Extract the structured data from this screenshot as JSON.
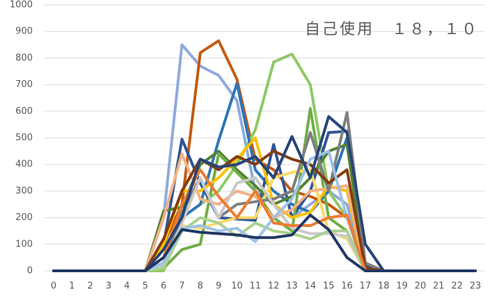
{
  "chart_data": {
    "type": "line",
    "title": "自己使用　１８，１０",
    "x": [
      0,
      1,
      2,
      3,
      4,
      5,
      6,
      7,
      8,
      9,
      10,
      11,
      12,
      13,
      14,
      15,
      16,
      17,
      18,
      19,
      20,
      21,
      22,
      23
    ],
    "xlim": [
      0,
      23
    ],
    "xticks": [
      0,
      1,
      2,
      3,
      4,
      5,
      6,
      7,
      8,
      9,
      10,
      11,
      12,
      13,
      14,
      15,
      16,
      17,
      18,
      19,
      20,
      21,
      22,
      23
    ],
    "ylim": [
      0,
      1000
    ],
    "yticks": [
      0,
      100,
      200,
      300,
      400,
      500,
      600,
      700,
      800,
      900,
      1000
    ],
    "grid": true,
    "series": [
      {
        "color": "#8faadc",
        "values": [
          0,
          0,
          0,
          0,
          0,
          0,
          200,
          850,
          770,
          735,
          640,
          300,
          250,
          200,
          250,
          300,
          250,
          0,
          0,
          0,
          0,
          0,
          0,
          0
        ]
      },
      {
        "color": "#c55a11",
        "values": [
          0,
          0,
          0,
          0,
          0,
          0,
          100,
          250,
          820,
          865,
          720,
          420,
          380,
          300,
          280,
          250,
          200,
          0,
          0,
          0,
          0,
          0,
          0,
          0
        ]
      },
      {
        "color": "#8fc866",
        "values": [
          0,
          0,
          0,
          0,
          0,
          0,
          0,
          200,
          250,
          300,
          400,
          530,
          785,
          815,
          700,
          300,
          200,
          0,
          0,
          0,
          0,
          0,
          0,
          0
        ]
      },
      {
        "color": "#2e75b6",
        "values": [
          0,
          0,
          0,
          0,
          0,
          0,
          50,
          200,
          250,
          490,
          705,
          380,
          300,
          250,
          220,
          300,
          500,
          20,
          0,
          0,
          0,
          0,
          0,
          0
        ]
      },
      {
        "color": "#2f5597",
        "values": [
          0,
          0,
          0,
          0,
          0,
          0,
          100,
          495,
          330,
          200,
          195,
          190,
          475,
          200,
          300,
          520,
          525,
          20,
          0,
          0,
          0,
          0,
          0,
          0
        ]
      },
      {
        "color": "#548235",
        "values": [
          0,
          0,
          0,
          0,
          0,
          0,
          225,
          240,
          400,
          450,
          380,
          320,
          250,
          280,
          350,
          450,
          475,
          10,
          0,
          0,
          0,
          0,
          0,
          0
        ]
      },
      {
        "color": "#70ad47",
        "values": [
          0,
          0,
          0,
          0,
          0,
          0,
          10,
          80,
          100,
          440,
          370,
          300,
          200,
          150,
          610,
          200,
          150,
          0,
          0,
          0,
          0,
          0,
          0,
          0
        ]
      },
      {
        "color": "#ffc000",
        "values": [
          0,
          0,
          0,
          0,
          0,
          0,
          100,
          300,
          300,
          350,
          420,
          500,
          250,
          200,
          220,
          320,
          300,
          0,
          0,
          0,
          0,
          0,
          0,
          0
        ]
      },
      {
        "color": "#ffd966",
        "values": [
          0,
          0,
          0,
          0,
          0,
          0,
          50,
          170,
          160,
          180,
          200,
          200,
          350,
          370,
          380,
          150,
          120,
          0,
          0,
          0,
          0,
          0,
          0,
          0
        ]
      },
      {
        "color": "#f4b183",
        "values": [
          0,
          0,
          0,
          0,
          0,
          0,
          200,
          440,
          270,
          250,
          300,
          280,
          200,
          230,
          300,
          310,
          320,
          0,
          0,
          0,
          0,
          0,
          0,
          0
        ]
      },
      {
        "color": "#7f7f7f",
        "values": [
          0,
          0,
          0,
          0,
          0,
          0,
          30,
          220,
          350,
          200,
          250,
          260,
          270,
          300,
          520,
          300,
          595,
          30,
          0,
          0,
          0,
          0,
          0,
          0
        ]
      },
      {
        "color": "#c9c9c9",
        "values": [
          0,
          0,
          0,
          0,
          0,
          0,
          20,
          180,
          350,
          200,
          330,
          350,
          250,
          160,
          140,
          140,
          130,
          0,
          0,
          0,
          0,
          0,
          0,
          0
        ]
      },
      {
        "color": "#843c0c",
        "values": [
          0,
          0,
          0,
          0,
          0,
          0,
          120,
          300,
          420,
          380,
          430,
          400,
          450,
          420,
          400,
          330,
          380,
          10,
          0,
          0,
          0,
          0,
          0,
          0
        ]
      },
      {
        "color": "#a9d18e",
        "values": [
          0,
          0,
          0,
          0,
          0,
          0,
          10,
          150,
          200,
          180,
          130,
          180,
          150,
          140,
          120,
          150,
          150,
          0,
          0,
          0,
          0,
          0,
          0,
          0
        ]
      },
      {
        "color": "#9dc3e6",
        "values": [
          0,
          0,
          0,
          0,
          0,
          0,
          30,
          160,
          170,
          150,
          160,
          110,
          200,
          270,
          420,
          450,
          200,
          0,
          0,
          0,
          0,
          0,
          0,
          0
        ]
      },
      {
        "color": "#ed7d31",
        "values": [
          0,
          0,
          0,
          0,
          0,
          0,
          50,
          250,
          380,
          280,
          200,
          300,
          180,
          170,
          170,
          200,
          210,
          0,
          0,
          0,
          0,
          0,
          0,
          0
        ]
      },
      {
        "color": "#264478",
        "values": [
          0,
          0,
          0,
          0,
          0,
          0,
          80,
          200,
          420,
          390,
          400,
          430,
          350,
          505,
          350,
          580,
          520,
          100,
          0,
          0,
          0,
          0,
          0,
          0
        ]
      },
      {
        "color": "#203864",
        "values": [
          0,
          0,
          0,
          0,
          0,
          0,
          50,
          155,
          145,
          140,
          135,
          125,
          125,
          135,
          210,
          155,
          50,
          0,
          0,
          0,
          0,
          0,
          0,
          0
        ]
      }
    ]
  }
}
